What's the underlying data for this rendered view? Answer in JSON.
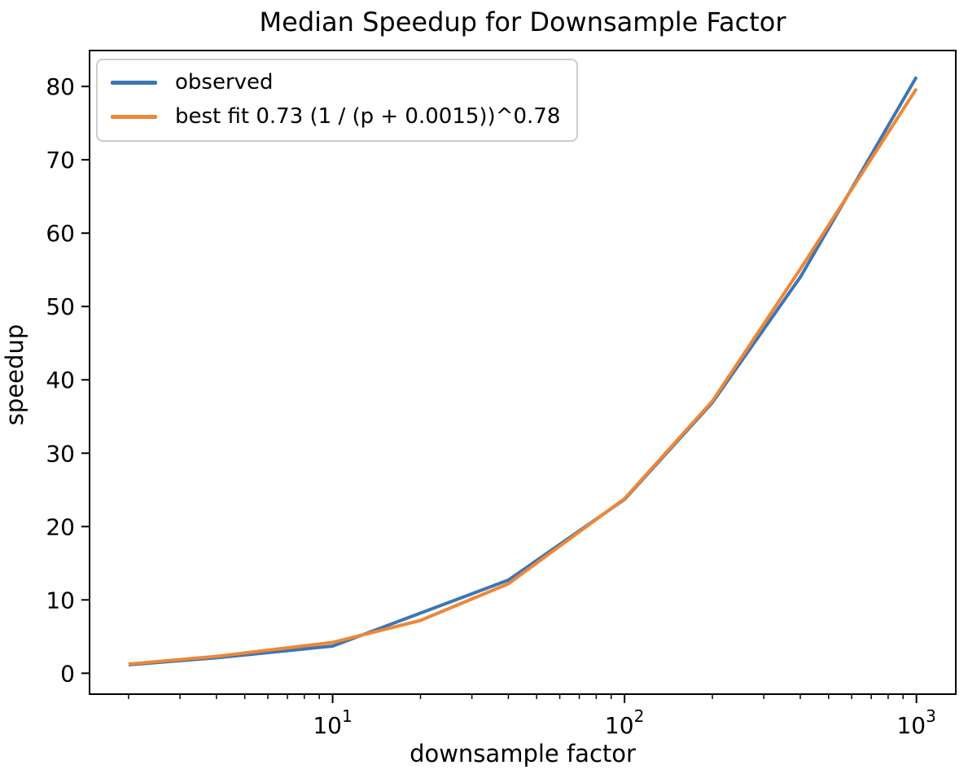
{
  "chart_data": {
    "type": "line",
    "title": "Median Speedup for Downsample Factor",
    "xlabel": "downsample factor",
    "ylabel": "speedup",
    "x_scale": "log10",
    "grid": false,
    "legend_position": "upper left",
    "background_color": "#ffffff",
    "axis_color": "#000000",
    "x": [
      2,
      4,
      10,
      20,
      40,
      100,
      200,
      400,
      1000
    ],
    "series": [
      {
        "name": "observed",
        "color": "#3c76b4",
        "values": [
          1.15,
          2.1,
          3.7,
          8.2,
          12.7,
          23.7,
          36.9,
          54.0,
          81.3
        ]
      },
      {
        "name": "best fit 0.73 (1 / (p + 0.0015))^0.78",
        "color": "#ef8636",
        "values": [
          1.25,
          2.3,
          4.2,
          7.2,
          12.2,
          23.8,
          37.1,
          55.1,
          79.7
        ]
      }
    ],
    "xlim": [
      1.47,
      1364
    ],
    "ylim": [
      -2.85,
      84.9
    ],
    "yticks": [
      0,
      10,
      20,
      30,
      40,
      50,
      60,
      70,
      80
    ],
    "xticks_major": [
      {
        "value": 10,
        "base": "10",
        "exponent": "1"
      },
      {
        "value": 100,
        "base": "10",
        "exponent": "2"
      },
      {
        "value": 1000,
        "base": "10",
        "exponent": "3"
      }
    ],
    "xticks_minor": [
      2,
      3,
      4,
      5,
      6,
      7,
      8,
      9,
      20,
      30,
      40,
      50,
      60,
      70,
      80,
      90,
      200,
      300,
      400,
      500,
      600,
      700,
      800,
      900
    ]
  }
}
